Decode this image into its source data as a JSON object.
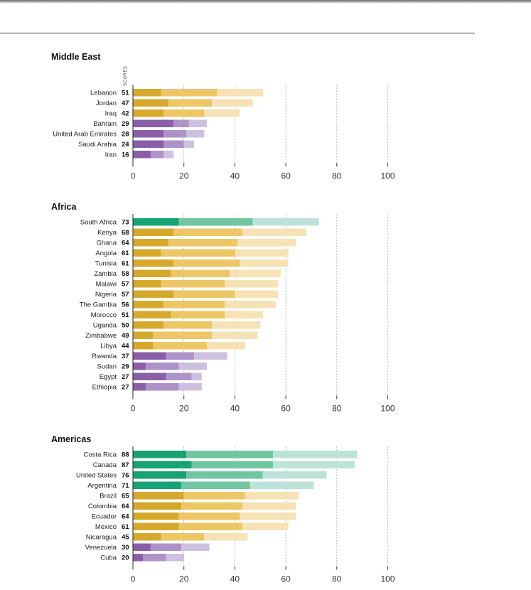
{
  "colors": {
    "yellow": [
      "#d6a92c",
      "#edc765",
      "#f6e2b4"
    ],
    "purple": [
      "#8a5fa8",
      "#ad93c7",
      "#cdc1df"
    ],
    "green": [
      "#16a272",
      "#6fc6a1",
      "#bde3d8"
    ]
  },
  "chart_data": [
    {
      "type": "bar",
      "title": "Middle East",
      "ylabel": "SCORES",
      "xlim": [
        0,
        100
      ],
      "ticks": [
        0,
        20,
        40,
        60,
        80,
        100
      ],
      "rows": [
        {
          "name": "Lebanon",
          "total": 51,
          "segments": [
            11,
            33,
            51
          ],
          "color": "yellow"
        },
        {
          "name": "Jordan",
          "total": 47,
          "segments": [
            14,
            31,
            47
          ],
          "color": "yellow"
        },
        {
          "name": "Iraq",
          "total": 42,
          "segments": [
            12,
            28,
            42
          ],
          "color": "yellow"
        },
        {
          "name": "Bahrain",
          "total": 29,
          "segments": [
            16,
            22,
            29
          ],
          "color": "purple"
        },
        {
          "name": "United Arab Emirates",
          "total": 28,
          "segments": [
            12,
            21,
            28
          ],
          "color": "purple"
        },
        {
          "name": "Saudi Arabia",
          "total": 24,
          "segments": [
            12,
            20,
            24
          ],
          "color": "purple"
        },
        {
          "name": "Iran",
          "total": 16,
          "segments": [
            7,
            12,
            16
          ],
          "color": "purple"
        }
      ]
    },
    {
      "type": "bar",
      "title": "Africa",
      "xlim": [
        0,
        100
      ],
      "ticks": [
        0,
        20,
        40,
        60,
        80,
        100
      ],
      "rows": [
        {
          "name": "South Africa",
          "total": 73,
          "segments": [
            18,
            47,
            73
          ],
          "color": "green"
        },
        {
          "name": "Kenya",
          "total": 68,
          "segments": [
            16,
            43,
            68
          ],
          "color": "yellow"
        },
        {
          "name": "Ghana",
          "total": 64,
          "segments": [
            14,
            41,
            64
          ],
          "color": "yellow"
        },
        {
          "name": "Angola",
          "total": 61,
          "segments": [
            11,
            40,
            61
          ],
          "color": "yellow"
        },
        {
          "name": "Tunisia",
          "total": 61,
          "segments": [
            16,
            42,
            61
          ],
          "color": "yellow"
        },
        {
          "name": "Zambia",
          "total": 58,
          "segments": [
            15,
            38,
            58
          ],
          "color": "yellow"
        },
        {
          "name": "Malawi",
          "total": 57,
          "segments": [
            11,
            36,
            57
          ],
          "color": "yellow"
        },
        {
          "name": "Nigeria",
          "total": 57,
          "segments": [
            16,
            40,
            57
          ],
          "color": "yellow"
        },
        {
          "name": "The Gambia",
          "total": 56,
          "segments": [
            12,
            36,
            56
          ],
          "color": "yellow"
        },
        {
          "name": "Morocco",
          "total": 51,
          "segments": [
            15,
            36,
            51
          ],
          "color": "yellow"
        },
        {
          "name": "Uganda",
          "total": 50,
          "segments": [
            12,
            31,
            50
          ],
          "color": "yellow"
        },
        {
          "name": "Zimbabwe",
          "total": 49,
          "segments": [
            8,
            31,
            49
          ],
          "color": "yellow"
        },
        {
          "name": "Libya",
          "total": 44,
          "segments": [
            8,
            29,
            44
          ],
          "color": "yellow"
        },
        {
          "name": "Rwanda",
          "total": 37,
          "segments": [
            13,
            24,
            37
          ],
          "color": "purple"
        },
        {
          "name": "Sudan",
          "total": 29,
          "segments": [
            5,
            18,
            29
          ],
          "color": "purple"
        },
        {
          "name": "Egypt",
          "total": 27,
          "segments": [
            13,
            23,
            27
          ],
          "color": "purple"
        },
        {
          "name": "Ethiopia",
          "total": 27,
          "segments": [
            5,
            18,
            27
          ],
          "color": "purple"
        }
      ]
    },
    {
      "type": "bar",
      "title": "Americas",
      "xlim": [
        0,
        100
      ],
      "ticks": [
        0,
        20,
        40,
        60,
        80,
        100
      ],
      "rows": [
        {
          "name": "Costa Rica",
          "total": 88,
          "segments": [
            21,
            55,
            88
          ],
          "color": "green"
        },
        {
          "name": "Canada",
          "total": 87,
          "segments": [
            23,
            55,
            87
          ],
          "color": "green"
        },
        {
          "name": "United States",
          "total": 76,
          "segments": [
            21,
            51,
            76
          ],
          "color": "green"
        },
        {
          "name": "Argentina",
          "total": 71,
          "segments": [
            19,
            46,
            71
          ],
          "color": "green"
        },
        {
          "name": "Brazil",
          "total": 65,
          "segments": [
            20,
            44,
            65
          ],
          "color": "yellow"
        },
        {
          "name": "Colombia",
          "total": 64,
          "segments": [
            19,
            43,
            64
          ],
          "color": "yellow"
        },
        {
          "name": "Ecuador",
          "total": 64,
          "segments": [
            18,
            42,
            64
          ],
          "color": "yellow"
        },
        {
          "name": "Mexico",
          "total": 61,
          "segments": [
            18,
            43,
            61
          ],
          "color": "yellow"
        },
        {
          "name": "Nicaragua",
          "total": 45,
          "segments": [
            11,
            28,
            45
          ],
          "color": "yellow"
        },
        {
          "name": "Venezuela",
          "total": 30,
          "segments": [
            7,
            19,
            30
          ],
          "color": "purple"
        },
        {
          "name": "Cuba",
          "total": 20,
          "segments": [
            4,
            13,
            20
          ],
          "color": "purple"
        }
      ]
    }
  ]
}
